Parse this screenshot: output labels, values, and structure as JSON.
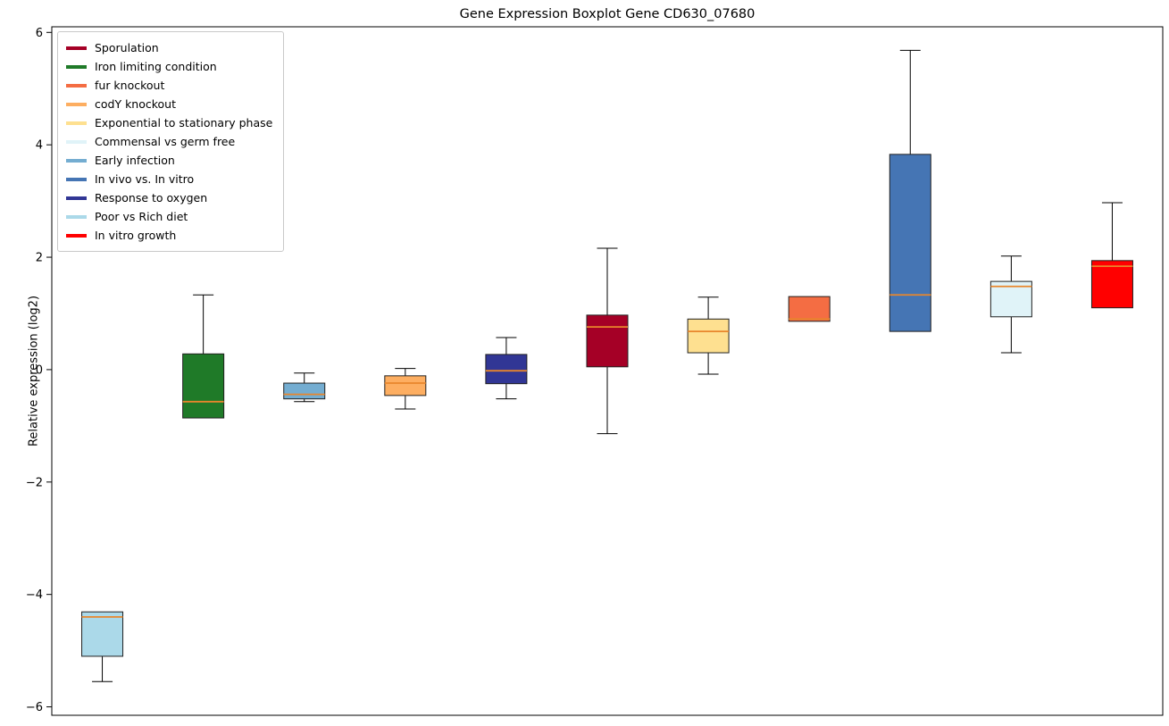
{
  "chart_data": {
    "type": "boxplot",
    "title": "Gene Expression Boxplot Gene CD630_07680",
    "ylabel": "Relative expression (log2)",
    "yticks": [
      -6,
      -4,
      -2,
      0,
      2,
      4,
      6
    ],
    "axis_range": [
      -6.15,
      6.1
    ],
    "grid": false,
    "legend_position": "upper-left",
    "median_color": "#e8862c",
    "box_edge_color": "#202020",
    "legend": [
      {
        "label": "Sporulation",
        "color": "#a50026"
      },
      {
        "label": "Iron limiting condition",
        "color": "#1f7a28"
      },
      {
        "label": "fur knockout",
        "color": "#f46d43"
      },
      {
        "label": "codY knockout",
        "color": "#fdae61"
      },
      {
        "label": "Exponential to stationary phase",
        "color": "#fee090"
      },
      {
        "label": "Commensal vs germ free",
        "color": "#e0f3f8"
      },
      {
        "label": "Early infection",
        "color": "#74add1"
      },
      {
        "label": "In vivo vs. In vitro",
        "color": "#4575b4"
      },
      {
        "label": "Response to oxygen",
        "color": "#313695"
      },
      {
        "label": "Poor vs Rich diet",
        "color": "#abd9e9"
      },
      {
        "label": "In vitro growth",
        "color": "#ff0000"
      }
    ],
    "boxes": [
      {
        "label": "Poor vs Rich diet",
        "color": "#abd9e9",
        "whislo": -5.55,
        "q1": -5.1,
        "med": -4.4,
        "q3": -4.31,
        "whishi": -4.31
      },
      {
        "label": "Iron limiting condition",
        "color": "#1f7a28",
        "whislo": -0.86,
        "q1": -0.86,
        "med": -0.57,
        "q3": 0.28,
        "whishi": 1.33
      },
      {
        "label": "Early infection",
        "color": "#74add1",
        "whislo": -0.57,
        "q1": -0.52,
        "med": -0.44,
        "q3": -0.24,
        "whishi": -0.06
      },
      {
        "label": "codY knockout",
        "color": "#fdae61",
        "whislo": -0.7,
        "q1": -0.46,
        "med": -0.24,
        "q3": -0.11,
        "whishi": 0.02
      },
      {
        "label": "Response to oxygen",
        "color": "#313695",
        "whislo": -0.52,
        "q1": -0.25,
        "med": -0.02,
        "q3": 0.27,
        "whishi": 0.57
      },
      {
        "label": "Sporulation",
        "color": "#a50026",
        "whislo": -1.14,
        "q1": 0.05,
        "med": 0.76,
        "q3": 0.97,
        "whishi": 2.16
      },
      {
        "label": "Exponential to stationary phase",
        "color": "#fee090",
        "whislo": -0.08,
        "q1": 0.3,
        "med": 0.68,
        "q3": 0.9,
        "whishi": 1.29
      },
      {
        "label": "fur knockout",
        "color": "#f46d43",
        "whislo": 0.86,
        "q1": 0.86,
        "med": 0.9,
        "q3": 1.3,
        "whishi": 1.3
      },
      {
        "label": "In vivo vs. In vitro",
        "color": "#4575b4",
        "whislo": 0.68,
        "q1": 0.68,
        "med": 1.33,
        "q3": 3.83,
        "whishi": 5.68
      },
      {
        "label": "Commensal vs germ free",
        "color": "#e0f3f8",
        "whislo": 0.3,
        "q1": 0.94,
        "med": 1.48,
        "q3": 1.57,
        "whishi": 2.02
      },
      {
        "label": "In vitro growth",
        "color": "#ff0000",
        "whislo": 1.1,
        "q1": 1.1,
        "med": 1.84,
        "q3": 1.94,
        "whishi": 2.97
      }
    ]
  }
}
